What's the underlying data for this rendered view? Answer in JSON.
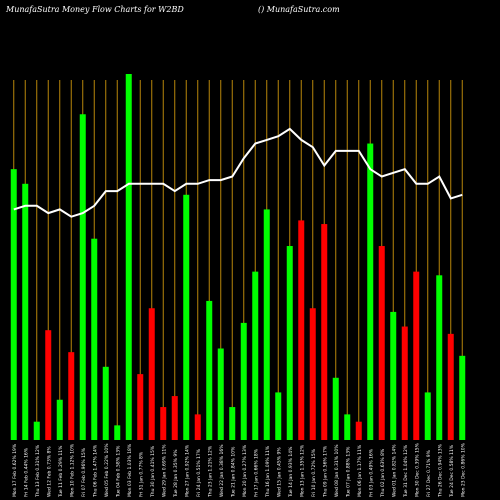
{
  "header": {
    "title": "MunafaSutra  Money Flow  Charts for W2BD",
    "site": "() MunafaSutra.com"
  },
  "colors": {
    "background": "#000000",
    "up": "#00ff00",
    "down": "#ff0000",
    "grid": "#b8860b",
    "line": "#ffffff",
    "label": "#ffffff"
  },
  "chart_data": {
    "type": "bar",
    "title": "",
    "xlabel": "",
    "ylabel": "",
    "categories": [
      "Mon 17 Feb 0.62% 19%",
      "Fri 14 Feb 0.44% 16%",
      "Thu 13 Feb 0.31% 12%",
      "Wed 12 Feb 0.73% 8%",
      "Tue 11 Feb 0.29% 11%",
      "Mon 10 Feb 1.12% 10%",
      "Fri 07 Feb 0.96% 15%",
      "Thu 06 Feb 1.47% 14%",
      "Wed 05 Feb 0.22% 10%",
      "Tue 04 Feb 0.58% 13%",
      "Mon 03 Feb 1.03% 18%",
      "Fri 31 Jan 0.77% 8%",
      "Thu 30 Jan 0.41% 15%",
      "Wed 29 Jan 0.69% 11%",
      "Tue 28 Jan 0.35% 9%",
      "Mon 27 Jan 0.92% 14%",
      "Fri 24 Jan 0.51% 17%",
      "Thu 23 Jan 1.21% 12%",
      "Wed 22 Jan 0.38% 16%",
      "Tue 21 Jan 0.84% 10%",
      "Mon 20 Jan 0.27% 13%",
      "Fri 17 Jan 0.66% 18%",
      "Thu 16 Jan 1.09% 11%",
      "Wed 15 Jan 0.45% 9%",
      "Tue 14 Jan 0.93% 14%",
      "Mon 13 Jan 1.35% 12%",
      "Fri 10 Jan 0.72% 15%",
      "Thu 09 Jan 0.56% 17%",
      "Wed 08 Jan 0.31% 10%",
      "Tue 07 Jan 0.88% 13%",
      "Mon 06 Jan 1.17% 11%",
      "Fri 03 Jan 0.49% 16%",
      "Thu 02 Jan 0.63% 8%",
      "Wed 01 Jan 0.82% 14%",
      "Tue 31 Dec 1.04% 12%",
      "Mon 30 Dec 0.39% 15%",
      "Fri 27 Dec 0.71% 9%",
      "Thu 26 Dec 0.94% 13%",
      "Tue 24 Dec 0.58% 11%",
      "Mon 23 Dec 0.86% 10%"
    ],
    "ylim": [
      0,
      100
    ],
    "bars": [
      {
        "value": 74,
        "dir": "up"
      },
      {
        "value": 70,
        "dir": "up"
      },
      {
        "value": 5,
        "dir": "up"
      },
      {
        "value": 30,
        "dir": "down"
      },
      {
        "value": 11,
        "dir": "up"
      },
      {
        "value": 24,
        "dir": "down"
      },
      {
        "value": 89,
        "dir": "up"
      },
      {
        "value": 55,
        "dir": "up"
      },
      {
        "value": 20,
        "dir": "up"
      },
      {
        "value": 4,
        "dir": "up"
      },
      {
        "value": 100,
        "dir": "up"
      },
      {
        "value": 18,
        "dir": "down"
      },
      {
        "value": 36,
        "dir": "down"
      },
      {
        "value": 9,
        "dir": "down"
      },
      {
        "value": 12,
        "dir": "down"
      },
      {
        "value": 67,
        "dir": "up"
      },
      {
        "value": 7,
        "dir": "down"
      },
      {
        "value": 38,
        "dir": "up"
      },
      {
        "value": 25,
        "dir": "up"
      },
      {
        "value": 9,
        "dir": "up"
      },
      {
        "value": 32,
        "dir": "up"
      },
      {
        "value": 46,
        "dir": "up"
      },
      {
        "value": 63,
        "dir": "up"
      },
      {
        "value": 13,
        "dir": "up"
      },
      {
        "value": 53,
        "dir": "up"
      },
      {
        "value": 60,
        "dir": "down"
      },
      {
        "value": 36,
        "dir": "down"
      },
      {
        "value": 59,
        "dir": "down"
      },
      {
        "value": 17,
        "dir": "up"
      },
      {
        "value": 7,
        "dir": "up"
      },
      {
        "value": 5,
        "dir": "down"
      },
      {
        "value": 81,
        "dir": "up"
      },
      {
        "value": 53,
        "dir": "down"
      },
      {
        "value": 35,
        "dir": "up"
      },
      {
        "value": 31,
        "dir": "down"
      },
      {
        "value": 46,
        "dir": "down"
      },
      {
        "value": 13,
        "dir": "up"
      },
      {
        "value": 45,
        "dir": "up"
      },
      {
        "value": 29,
        "dir": "down"
      },
      {
        "value": 23,
        "dir": "up"
      }
    ],
    "line": [
      63,
      64,
      64,
      62,
      63,
      61,
      62,
      64,
      68,
      68,
      70,
      70,
      70,
      70,
      68,
      70,
      70,
      71,
      71,
      72,
      77,
      81,
      82,
      83,
      85,
      82,
      80,
      75,
      79,
      79,
      79,
      74,
      72,
      73,
      74,
      70,
      70,
      72,
      66,
      67
    ]
  }
}
